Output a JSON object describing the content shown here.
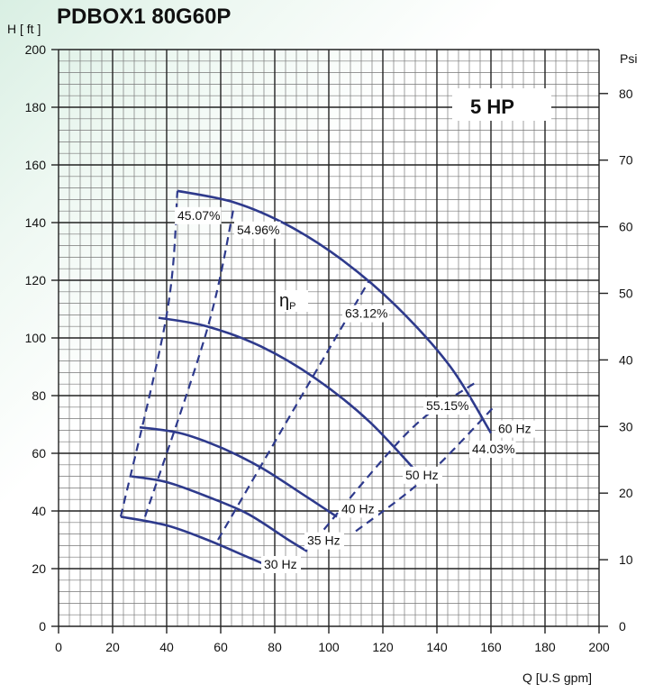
{
  "chart_data": {
    "type": "line",
    "title": "PDBOX1 80G60P",
    "ylabel": "H [ ft ]",
    "xlabel": "Q [U.S gpm]",
    "y2label": "Psi",
    "badge": "5 HP",
    "eta_label": "η",
    "eta_sub": "P",
    "xlim": [
      0,
      200
    ],
    "ylim": [
      0,
      200
    ],
    "y2lim": [
      0,
      86.6
    ],
    "xticks": [
      0,
      20,
      40,
      60,
      80,
      100,
      120,
      140,
      160,
      180,
      200
    ],
    "yticks": [
      0,
      20,
      40,
      60,
      80,
      100,
      120,
      140,
      160,
      180,
      200
    ],
    "y2ticks": [
      0,
      10,
      20,
      30,
      40,
      50,
      60,
      70,
      80
    ],
    "grid": true,
    "series": [
      {
        "name": "30 Hz",
        "x": [
          23,
          40,
          55,
          70,
          80
        ],
        "y": [
          38,
          35,
          30,
          24,
          20
        ]
      },
      {
        "name": "35 Hz",
        "x": [
          27,
          40,
          55,
          70,
          85,
          92
        ],
        "y": [
          52,
          50,
          45,
          39,
          30,
          26
        ]
      },
      {
        "name": "40 Hz",
        "x": [
          30,
          45,
          60,
          75,
          90,
          103
        ],
        "y": [
          69,
          67,
          62,
          55,
          46,
          38
        ]
      },
      {
        "name": "50 Hz",
        "x": [
          37,
          55,
          75,
          95,
          115,
          135
        ],
        "y": [
          107,
          104,
          97,
          86,
          71,
          51
        ]
      },
      {
        "name": "60 Hz",
        "x": [
          44,
          65,
          85,
          105,
          125,
          145,
          160
        ],
        "y": [
          151,
          147,
          139,
          127,
          111,
          90,
          67
        ]
      }
    ],
    "efficiency_lines": [
      {
        "name": "45.07%",
        "x": [
          23,
          40,
          44
        ],
        "y": [
          38,
          108,
          151
        ]
      },
      {
        "name": "54.96%",
        "x": [
          32,
          55,
          65
        ],
        "y": [
          38,
          103,
          146
        ]
      },
      {
        "name": "63.12%",
        "x": [
          59,
          90,
          115
        ],
        "y": [
          30,
          80,
          120
        ]
      },
      {
        "name": "55.15%",
        "x": [
          95,
          130,
          155
        ],
        "y": [
          30,
          68,
          85
        ]
      },
      {
        "name": "44.03%",
        "x": [
          110,
          135,
          161
        ],
        "y": [
          33,
          51,
          76
        ]
      }
    ]
  }
}
